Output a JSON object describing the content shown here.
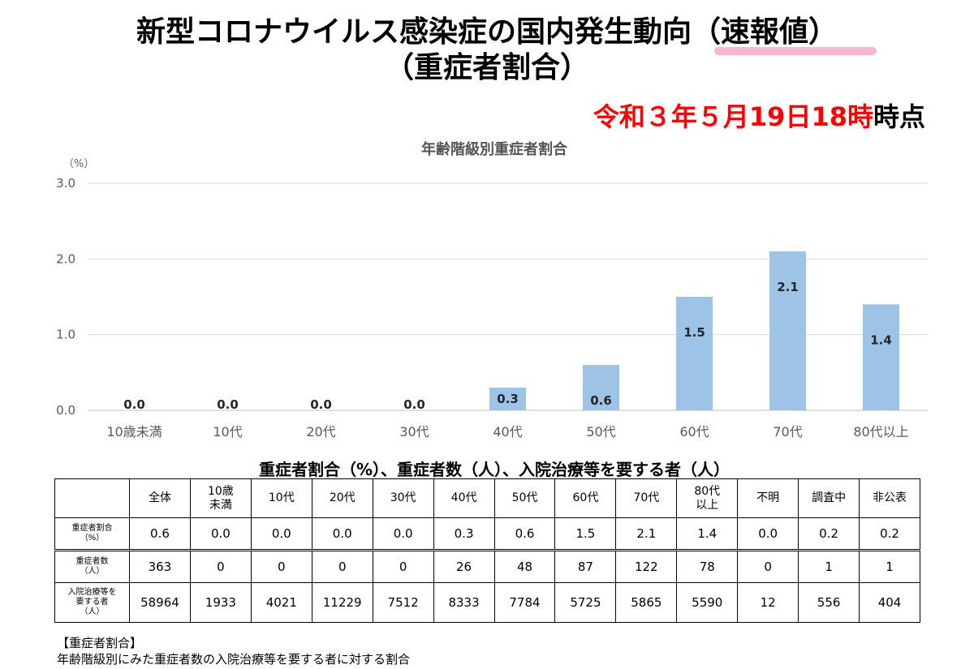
{
  "header": {
    "title_line1": "新型コロナウイルス感染症の国内発生動向（速報値）",
    "title_line2": "（重症者割合）",
    "timestamp_red": "令和３年５月19日18時",
    "timestamp_black": "時点",
    "highlight_color": "#f4a6c6",
    "timestamp_color": "#ff0000"
  },
  "chart_data": {
    "type": "bar",
    "title": "年齢階級別重症者割合",
    "ylabel": "（%）",
    "xlabel": "",
    "categories": [
      "10歳未満",
      "10代",
      "20代",
      "30代",
      "40代",
      "50代",
      "60代",
      "70代",
      "80代以上"
    ],
    "values": [
      0.0,
      0.0,
      0.0,
      0.0,
      0.3,
      0.6,
      1.5,
      2.1,
      1.4
    ],
    "value_labels": [
      "0.0",
      "0.0",
      "0.0",
      "0.0",
      "0.3",
      "0.6",
      "1.5",
      "2.1",
      "1.4"
    ],
    "y_ticks": [
      "0.0",
      "1.0",
      "2.0",
      "3.0"
    ],
    "ylim": [
      0,
      3
    ],
    "bar_color": "#9dc3e6",
    "grid": true
  },
  "table": {
    "caption": "重症者割合（%）、重症者数（人）、入院治療等を要する者（人）",
    "columns": [
      "全体",
      "10歳\n未満",
      "10代",
      "20代",
      "30代",
      "40代",
      "50代",
      "60代",
      "70代",
      "80代\n以上",
      "不明",
      "調査中",
      "非公表"
    ],
    "rows": [
      {
        "label": "重症者割合\n（%）",
        "values": [
          "0.6",
          "0.0",
          "0.0",
          "0.0",
          "0.0",
          "0.3",
          "0.6",
          "1.5",
          "2.1",
          "1.4",
          "0.0",
          "0.2",
          "0.2"
        ]
      },
      {
        "label": "重症者数\n（人）",
        "values": [
          "363",
          "0",
          "0",
          "0",
          "0",
          "26",
          "48",
          "87",
          "122",
          "78",
          "0",
          "1",
          "1"
        ]
      },
      {
        "label": "入院治療等を\n要する者\n（人）",
        "values": [
          "58964",
          "1933",
          "4021",
          "11229",
          "7512",
          "8333",
          "7784",
          "5725",
          "5865",
          "5590",
          "12",
          "556",
          "404"
        ]
      }
    ]
  },
  "notes": {
    "heading": "【重症者割合】",
    "body": "年齢階級別にみた重症者数の入院治療等を要する者に対する割合"
  }
}
